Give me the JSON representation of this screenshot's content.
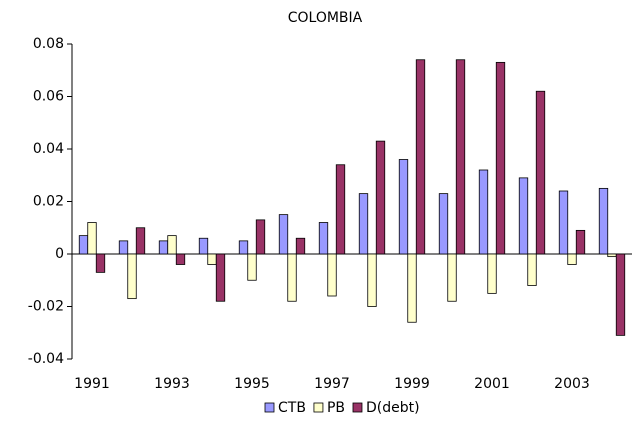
{
  "chart_data": {
    "type": "bar",
    "title": "COLOMBIA",
    "categories": [
      "1991",
      null,
      "1993",
      null,
      "1995",
      null,
      "1997",
      null,
      "1999",
      null,
      "2001",
      null,
      "2003",
      null
    ],
    "series": [
      {
        "name": "CTB",
        "color": "#9999ff",
        "values": [
          0.007,
          0.005,
          0.005,
          0.006,
          0.005,
          0.015,
          0.012,
          0.023,
          0.036,
          0.023,
          0.032,
          0.029,
          0.024,
          0.025
        ]
      },
      {
        "name": "PB",
        "color": "#ffffcc",
        "values": [
          0.012,
          -0.017,
          0.007,
          -0.004,
          -0.01,
          -0.018,
          -0.016,
          -0.02,
          -0.026,
          -0.018,
          -0.015,
          -0.012,
          -0.004,
          -0.001
        ]
      },
      {
        "name": "D(debt)",
        "color": "#993366",
        "values": [
          -0.007,
          0.01,
          -0.004,
          -0.018,
          0.013,
          0.006,
          0.034,
          0.043,
          0.074,
          0.074,
          0.073,
          0.062,
          0.009,
          -0.031
        ]
      }
    ],
    "ylim": [
      -0.04,
      0.08
    ],
    "yticks": [
      -0.04,
      -0.02,
      0,
      0.02,
      0.04,
      0.06,
      0.08
    ],
    "grid": false,
    "legend": "bottom"
  }
}
